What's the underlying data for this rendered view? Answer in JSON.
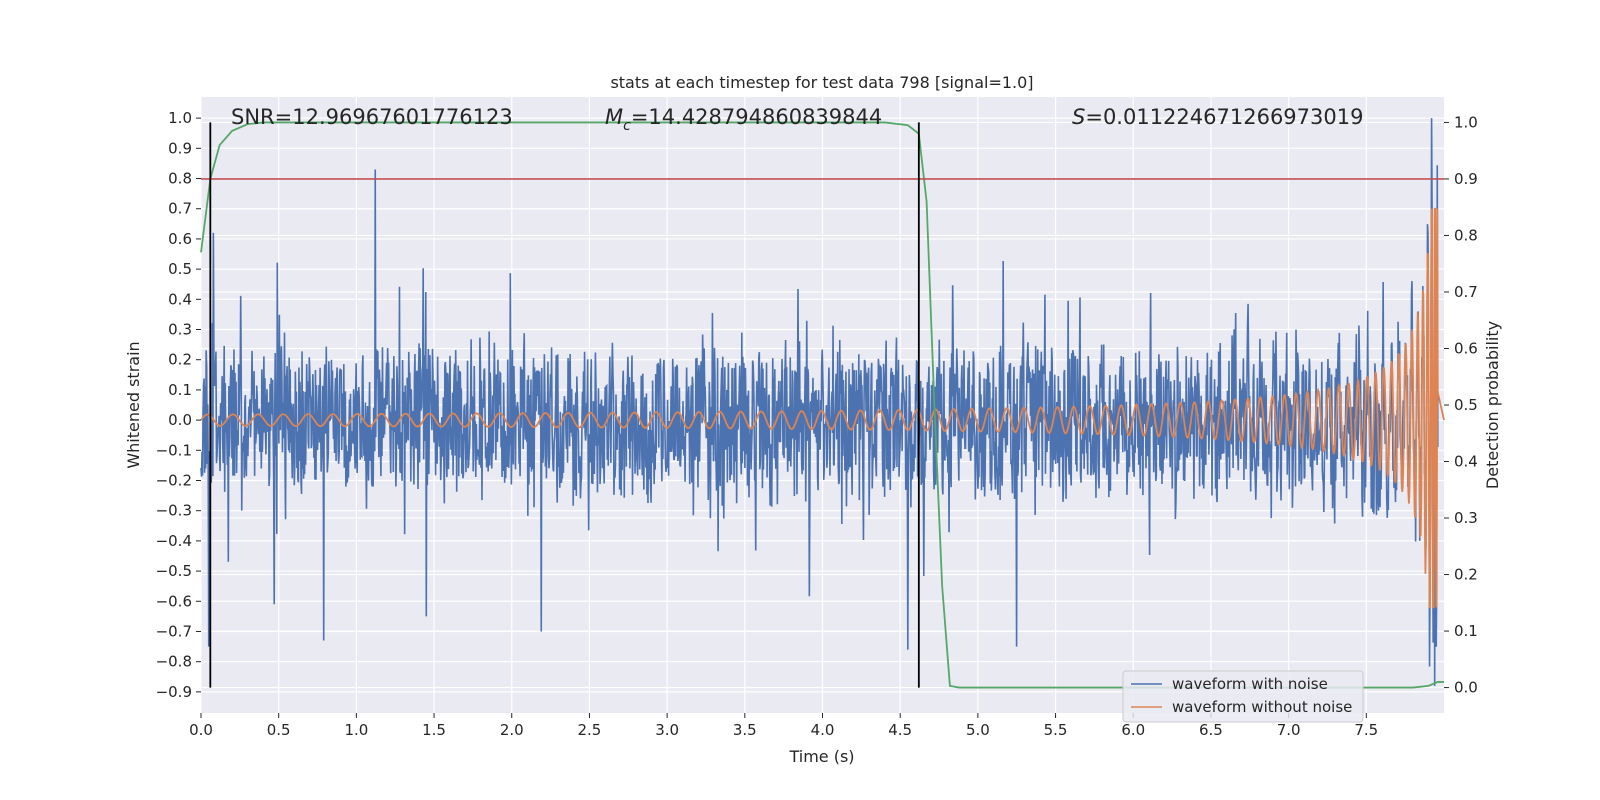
{
  "chart_data": {
    "type": "line",
    "title": "stats at each timestep for test data 798 [signal=1.0]",
    "xlabel": "Time (s)",
    "ylabel": "Whitened strain",
    "y2label": "Detection probability",
    "xlim": [
      0.0,
      8.0
    ],
    "ylim": [
      -0.97,
      1.07
    ],
    "y2lim": [
      -0.045,
      1.045
    ],
    "xticks": [
      "0.0",
      "0.5",
      "1.0",
      "1.5",
      "2.0",
      "2.5",
      "3.0",
      "3.5",
      "4.0",
      "4.5",
      "5.0",
      "5.5",
      "6.0",
      "6.5",
      "7.0",
      "7.5"
    ],
    "yticks": [
      "-0.9",
      "-0.8",
      "-0.7",
      "-0.6",
      "-0.5",
      "-0.4",
      "-0.3",
      "-0.2",
      "-0.1",
      "0.0",
      "0.1",
      "0.2",
      "0.3",
      "0.4",
      "0.5",
      "0.6",
      "0.7",
      "0.8",
      "0.9",
      "1.0"
    ],
    "y2ticks": [
      "0.0",
      "0.1",
      "0.2",
      "0.3",
      "0.4",
      "0.5",
      "0.6",
      "0.7",
      "0.8",
      "0.9",
      "1.0"
    ],
    "grid": true,
    "legend_position": "lower-right",
    "annotations": {
      "snr": "SNR=12.96967601776123",
      "mc_symbol": "M",
      "mc_sub": "c",
      "mc_value": "=14.428794860839844",
      "s_symbol": "S",
      "s_value": "=0.011224671266973019"
    },
    "series": [
      {
        "name": "waveform with noise",
        "color": "#4c72b0",
        "axis": "left"
      },
      {
        "name": "waveform without noise",
        "color": "#dd8452",
        "axis": "left"
      },
      {
        "color": "#55a868",
        "axis": "right",
        "x": [
          0.0,
          0.06,
          0.12,
          0.2,
          0.3,
          0.4,
          0.6,
          1.0,
          2.0,
          3.0,
          4.0,
          4.4,
          4.55,
          4.62,
          4.67,
          4.72,
          4.77,
          4.82,
          4.88,
          5.0,
          6.0,
          7.0,
          7.6,
          7.8,
          7.9,
          7.96,
          8.0
        ],
        "y": [
          0.77,
          0.9,
          0.96,
          0.985,
          0.997,
          1.0,
          1.0,
          1.0,
          1.0,
          1.0,
          1.0,
          1.0,
          0.995,
          0.98,
          0.86,
          0.5,
          0.18,
          0.003,
          0.0,
          0.0,
          0.0,
          0.0,
          0.0,
          0.0,
          0.003,
          0.01,
          0.01
        ]
      }
    ],
    "threshold": {
      "axis": "right",
      "y": 0.9,
      "color": "#c44e52"
    },
    "vlines": [
      0.06,
      4.62
    ],
    "noise_peaks": [
      {
        "x": 0.05,
        "y": -0.75
      },
      {
        "x": 0.08,
        "y": 0.62
      },
      {
        "x": 0.47,
        "y": -0.61
      },
      {
        "x": 0.79,
        "y": -0.73
      },
      {
        "x": 1.12,
        "y": 0.83
      },
      {
        "x": 1.45,
        "y": -0.65
      },
      {
        "x": 2.19,
        "y": -0.7
      },
      {
        "x": 4.55,
        "y": -0.76
      },
      {
        "x": 5.25,
        "y": -0.75
      },
      {
        "x": 7.92,
        "y": 1.0
      },
      {
        "x": 7.94,
        "y": -0.88
      }
    ]
  }
}
